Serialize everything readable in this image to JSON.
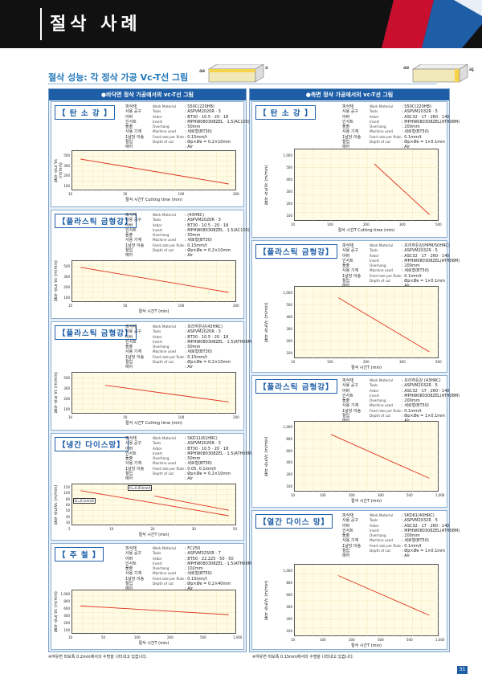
{
  "header": {
    "title": "절삭 사례"
  },
  "subtitle": "절삭 성능: 각 정삭 가공 Vc-T선 그림",
  "icons": {
    "ae": "ae",
    "ap": "ap"
  },
  "colors": {
    "accent": "#1e5ea7",
    "line": "#e0301e",
    "grid": "#d9cf86"
  },
  "left": {
    "head": "●바닥면 정삭 가공에서의 vc-T선 그림",
    "cards": [
      {
        "title": "【 탄 소 강 】",
        "specs": [
          [
            "피삭재",
            "Work Material",
            "S50C(220HB)"
          ],
          [
            "사용 공구",
            "Tools",
            "ASPVM2020R · 3"
          ],
          [
            "아버",
            "Arbor",
            "BT30 · 10.5 · 20 · 18"
          ],
          [
            "인서트",
            "Insert",
            "MPHW080308ZEL · 1.5(AC100)"
          ],
          [
            "돌출",
            "Overhang",
            "50mm"
          ],
          [
            "사용 기계",
            "Machine used",
            "세로형(BT30)"
          ],
          [
            "1날당 이송",
            "Feed rate per flute",
            "0.15mm/t"
          ],
          [
            "절입",
            "Depth of cut",
            "Øp×Øe = 0.2×10mm"
          ],
          [
            "에어",
            "",
            "Air"
          ]
        ],
        "chart": {
          "yticks": [
            "500",
            "300",
            "200",
            "100"
          ],
          "xticks": [
            "10",
            "50",
            "100",
            "200"
          ],
          "ylabel": "절삭 속도 Vc (m/min)",
          "xlabel": "절삭 시간T   Cutting time (min)",
          "line": [
            [
              0.05,
              0.2
            ],
            [
              0.95,
              0.82
            ]
          ]
        }
      },
      {
        "title": "【플라스틱 금형강】",
        "specs": [
          [
            "피삭재",
            "Work Material",
            "(43HRC)"
          ],
          [
            "사용 공구",
            "Tools",
            "ASPVM2020R · 3"
          ],
          [
            "아버",
            "Arbor",
            "BT30 · 10.5 · 20 · 18"
          ],
          [
            "인서트",
            "Insert",
            "MPHW080308ZEL · 1.5(AC100)"
          ],
          [
            "돌출",
            "Overhang",
            "50mm"
          ],
          [
            "사용 기계",
            "Machine used",
            "세로형(BT30)"
          ],
          [
            "1날당 이송",
            "Feed rate per flute",
            "0.15mm/t"
          ],
          [
            "절입",
            "Depth of cut",
            "Øp×Øe = 0.2×10mm"
          ],
          [
            "에어",
            "",
            "Air"
          ]
        ],
        "chart": {
          "yticks": [
            "500",
            "300",
            "200",
            "100"
          ],
          "xticks": [
            "10",
            "50",
            "100",
            "200"
          ],
          "ylabel": "절삭 속도 Vc (m/min)",
          "xlabel": "절삭 시간T   (min)",
          "line": [
            [
              0.05,
              0.15
            ],
            [
              0.95,
              0.75
            ]
          ]
        }
      },
      {
        "title": "【플라스틱 금형강】",
        "specs": [
          [
            "피삭재",
            "Work Material",
            "프리하든강(43HRC)"
          ],
          [
            "사용 공구",
            "Tools",
            "ASPVM2020R · 3"
          ],
          [
            "아버",
            "Arbor",
            "BT30 · 10.5 · 20 · 18"
          ],
          [
            "인서트",
            "Insert",
            "MPHW080308ZEL · 1.5(ATH08M)"
          ],
          [
            "돌출",
            "Overhang",
            "50mm"
          ],
          [
            "사용 기계",
            "Machine used",
            "세로형(BT30)"
          ],
          [
            "1날당 이송",
            "Feed rate per flute",
            "0.15mm/t"
          ],
          [
            "절입",
            "Depth of cut",
            "Øp×Øe = 0.2×10mm"
          ],
          [
            "에어",
            "",
            "Air"
          ]
        ],
        "chart": {
          "yticks": [
            "500",
            "300",
            "200",
            "100"
          ],
          "xticks": [
            "10",
            "50",
            "100",
            "200"
          ],
          "ylabel": "절삭 속도 Vc (m/min)",
          "xlabel": "절삭 시간T   Cutting time (min)",
          "line": [
            [
              0.2,
              0.3
            ],
            [
              0.95,
              0.7
            ]
          ]
        }
      },
      {
        "title": "【냉간 다이스망】",
        "specs": [
          [
            "피삭재",
            "Work Material",
            "SKD11(61HRC)"
          ],
          [
            "사용 공구",
            "Tools",
            "ASPVM2020R · 3"
          ],
          [
            "아버",
            "Arbor",
            "BT30 · 10.5 · 20 · 18"
          ],
          [
            "인서트",
            "Insert",
            "MPHW080308ZEL · 1.5(ATH08M)"
          ],
          [
            "돌출",
            "Overhang",
            "50mm"
          ],
          [
            "사용 기계",
            "Machine used",
            "세로형(BT30)"
          ],
          [
            "1날당 이송",
            "Feed rate per flute",
            "0.05, 0.1mm/t"
          ],
          [
            "절입",
            "Depth of cut",
            "Øp×Øe = 0.2×10mm"
          ],
          [
            "에어",
            "",
            "Air"
          ]
        ],
        "chart": {
          "yticks": [
            "150",
            "100",
            "80",
            "60",
            "50",
            "40",
            "30"
          ],
          "xticks": [
            "5",
            "10",
            "20",
            "30",
            "50"
          ],
          "ylabel": "절삭 속도Vc (m/min)",
          "xlabel": "절삭 시간T  (min)",
          "line": [
            [
              0.05,
              0.15
            ],
            [
              0.95,
              0.75
            ]
          ],
          "line2": [
            [
              0.5,
              0.28
            ],
            [
              0.95,
              0.62
            ]
          ],
          "ann1": "fz=0.05mm/t",
          "ann2": "fz=0.1mm/t"
        }
      },
      {
        "title": "【 주 철 】",
        "specs": [
          [
            "피삭재",
            "Work Material",
            "FC250"
          ],
          [
            "사용 공구",
            "Tools",
            "ASPVM3250R · 7"
          ],
          [
            "아버",
            "Arbor",
            "BT50 · 22.225 · 50 · 50"
          ],
          [
            "인서트",
            "Insert",
            "MPHW080308ZEL · 1.5(ATH08M)"
          ],
          [
            "돌출",
            "Overhang",
            "102mm"
          ],
          [
            "사용 기계",
            "Machine used",
            "세로형(BT50)"
          ],
          [
            "1날당 이송",
            "Feed rate per flute",
            "0.15mm/t"
          ],
          [
            "절입",
            "Depth of cut",
            "Øp×Øe = 0.2×40mm"
          ],
          [
            "에어",
            "",
            "Air"
          ]
        ],
        "chart": {
          "yticks": [
            "1,000",
            "800",
            "600",
            "400",
            "200",
            "100"
          ],
          "xticks": [
            "10",
            "50",
            "100",
            "200",
            "500",
            "1,000"
          ],
          "ylabel": "절삭 속도 Vc (m/min)",
          "xlabel": "절삭 시간T  (min)",
          "line": [
            [
              0.05,
              0.35
            ],
            [
              0.95,
              0.55
            ]
          ]
        }
      }
    ],
    "note": "※여유면 마모폭 0.2mm에서의 수명을 나타내고 있습니다."
  },
  "right": {
    "head": "●측면 정삭 가공에서의 vc-T선 그림",
    "cards": [
      {
        "title": "【 탄 소 강 】",
        "specs": [
          [
            "피삭재",
            "Work Material",
            "S50C(220HB)"
          ],
          [
            "사용 공구",
            "Tools",
            "ASPVM2032R · 5"
          ],
          [
            "아버",
            "Arbor",
            "ASC32 · 17 · 260 · 140"
          ],
          [
            "인서트",
            "Insert",
            "MPHW080308ZEL(ATH08M)"
          ],
          [
            "돌출",
            "Overhang",
            "200mm"
          ],
          [
            "사용 기계",
            "Machine used",
            "세로형(BT50)"
          ],
          [
            "1날당 이송",
            "Feed rate per flute",
            "0.1mm/t"
          ],
          [
            "절입",
            "Depth of cut",
            "Øp×Øe = 1×0.1mm"
          ],
          [
            "에어",
            "",
            "Air"
          ]
        ],
        "chart": {
          "yticks": [
            "1,000",
            "500",
            "400",
            "300",
            "200",
            "100"
          ],
          "xticks": [
            "10",
            "100",
            "200",
            "300",
            "500"
          ],
          "ylabel": "절삭 속도Vc (m/min)",
          "xlabel": "절삭 시간T   Cutting time (min)",
          "line": [
            [
              0.55,
              0.2
            ],
            [
              0.93,
              0.9
            ]
          ]
        }
      },
      {
        "title": "【플라스틱 금형강】",
        "specs": [
          [
            "피삭재",
            "Work Material",
            "프리하든강(HPM/50HRC)"
          ],
          [
            "사용 공구",
            "Tools",
            "ASPVM2032R · 5"
          ],
          [
            "아버",
            "Arbor",
            "ASC32 · 17 · 260 · 140"
          ],
          [
            "인서트",
            "Insert",
            "MPHW080308ZEL(ATH08M)"
          ],
          [
            "돌출",
            "Overhang",
            "200mm"
          ],
          [
            "사용 기계",
            "Machine used",
            "세로형(BT50)"
          ],
          [
            "1날당 이송",
            "Feed rate per flute",
            "0.1mm/t"
          ],
          [
            "절입",
            "Depth of cut",
            "Øp×Øe = 1×0.1mm"
          ],
          [
            "에어",
            "",
            "Air"
          ]
        ],
        "chart": {
          "yticks": [
            "1,000",
            "500",
            "400",
            "300",
            "200",
            "100"
          ],
          "xticks": [
            "10",
            "100",
            "200",
            "300",
            "500"
          ],
          "ylabel": "절삭 속도Vc (m/min)",
          "xlabel": "절삭 시간T   (min)",
          "line": [
            [
              0.3,
              0.15
            ],
            [
              0.93,
              0.9
            ]
          ]
        }
      },
      {
        "title": "【플라스틱 금형강】",
        "specs": [
          [
            "피삭재",
            "Work Material",
            "프리하든강 (43HRC)"
          ],
          [
            "사용 공구",
            "Tools",
            "ASPVM2032R · 5"
          ],
          [
            "아버",
            "Arbor",
            "ASC32 · 17 · 260 · 140"
          ],
          [
            "인서트",
            "Insert",
            "MPHW080308ZEL(ATH08M)"
          ],
          [
            "돌출",
            "Overhang",
            "200mm"
          ],
          [
            "사용 기계",
            "Machine used",
            "세로형(BT50)"
          ],
          [
            "1날당 이송",
            "Feed rate per flute",
            "0.1mm/t"
          ],
          [
            "절입",
            "Depth of cut",
            "Øp×Øe = 1×0.1mm"
          ],
          [
            "에어",
            "",
            "Air"
          ]
        ],
        "chart": {
          "yticks": [
            "1,000",
            "800",
            "600",
            "400",
            "200",
            "100"
          ],
          "xticks": [
            "10",
            "100",
            "200",
            "300",
            "500",
            "1,000"
          ],
          "ylabel": "절삭 속도Vc (m/min)",
          "xlabel": "절삭 시간T   (min)",
          "line": [
            [
              0.25,
              0.18
            ],
            [
              0.93,
              0.8
            ]
          ]
        }
      },
      {
        "title": "【열간 다이스 망】",
        "specs": [
          [
            "피삭재",
            "Work Material",
            "SKD61(40HRC)"
          ],
          [
            "사용 공구",
            "Tools",
            "ASPVM2032R · 5"
          ],
          [
            "아버",
            "Arbor",
            "ASC32 · 17 · 260 · 140"
          ],
          [
            "인서트",
            "Insert",
            "MPHW080308ZEL(ATH08M)"
          ],
          [
            "돌출",
            "Overhang",
            "200mm"
          ],
          [
            "사용 기계",
            "Machine used",
            "세로형(BT50)"
          ],
          [
            "1날당 이송",
            "Feed rate per flute",
            "0.1mm/t"
          ],
          [
            "절입",
            "Depth of cut",
            "Øp×Øe = 1×0.1mm"
          ],
          [
            "에어",
            "",
            "Air"
          ]
        ],
        "chart": {
          "yticks": [
            "1,000",
            "800",
            "600",
            "400",
            "200",
            "100"
          ],
          "xticks": [
            "10",
            "100",
            "200",
            "300",
            "500",
            "1,000"
          ],
          "ylabel": "절삭 속도Vc (m/min)",
          "xlabel": "절삭 시간T   (min)",
          "line": [
            [
              0.3,
              0.15
            ],
            [
              0.93,
              0.7
            ]
          ]
        }
      }
    ],
    "note": "※여유면 마모폭 0.15mm에서의 수명을 나타내고 있습니다."
  },
  "page_number": "31"
}
